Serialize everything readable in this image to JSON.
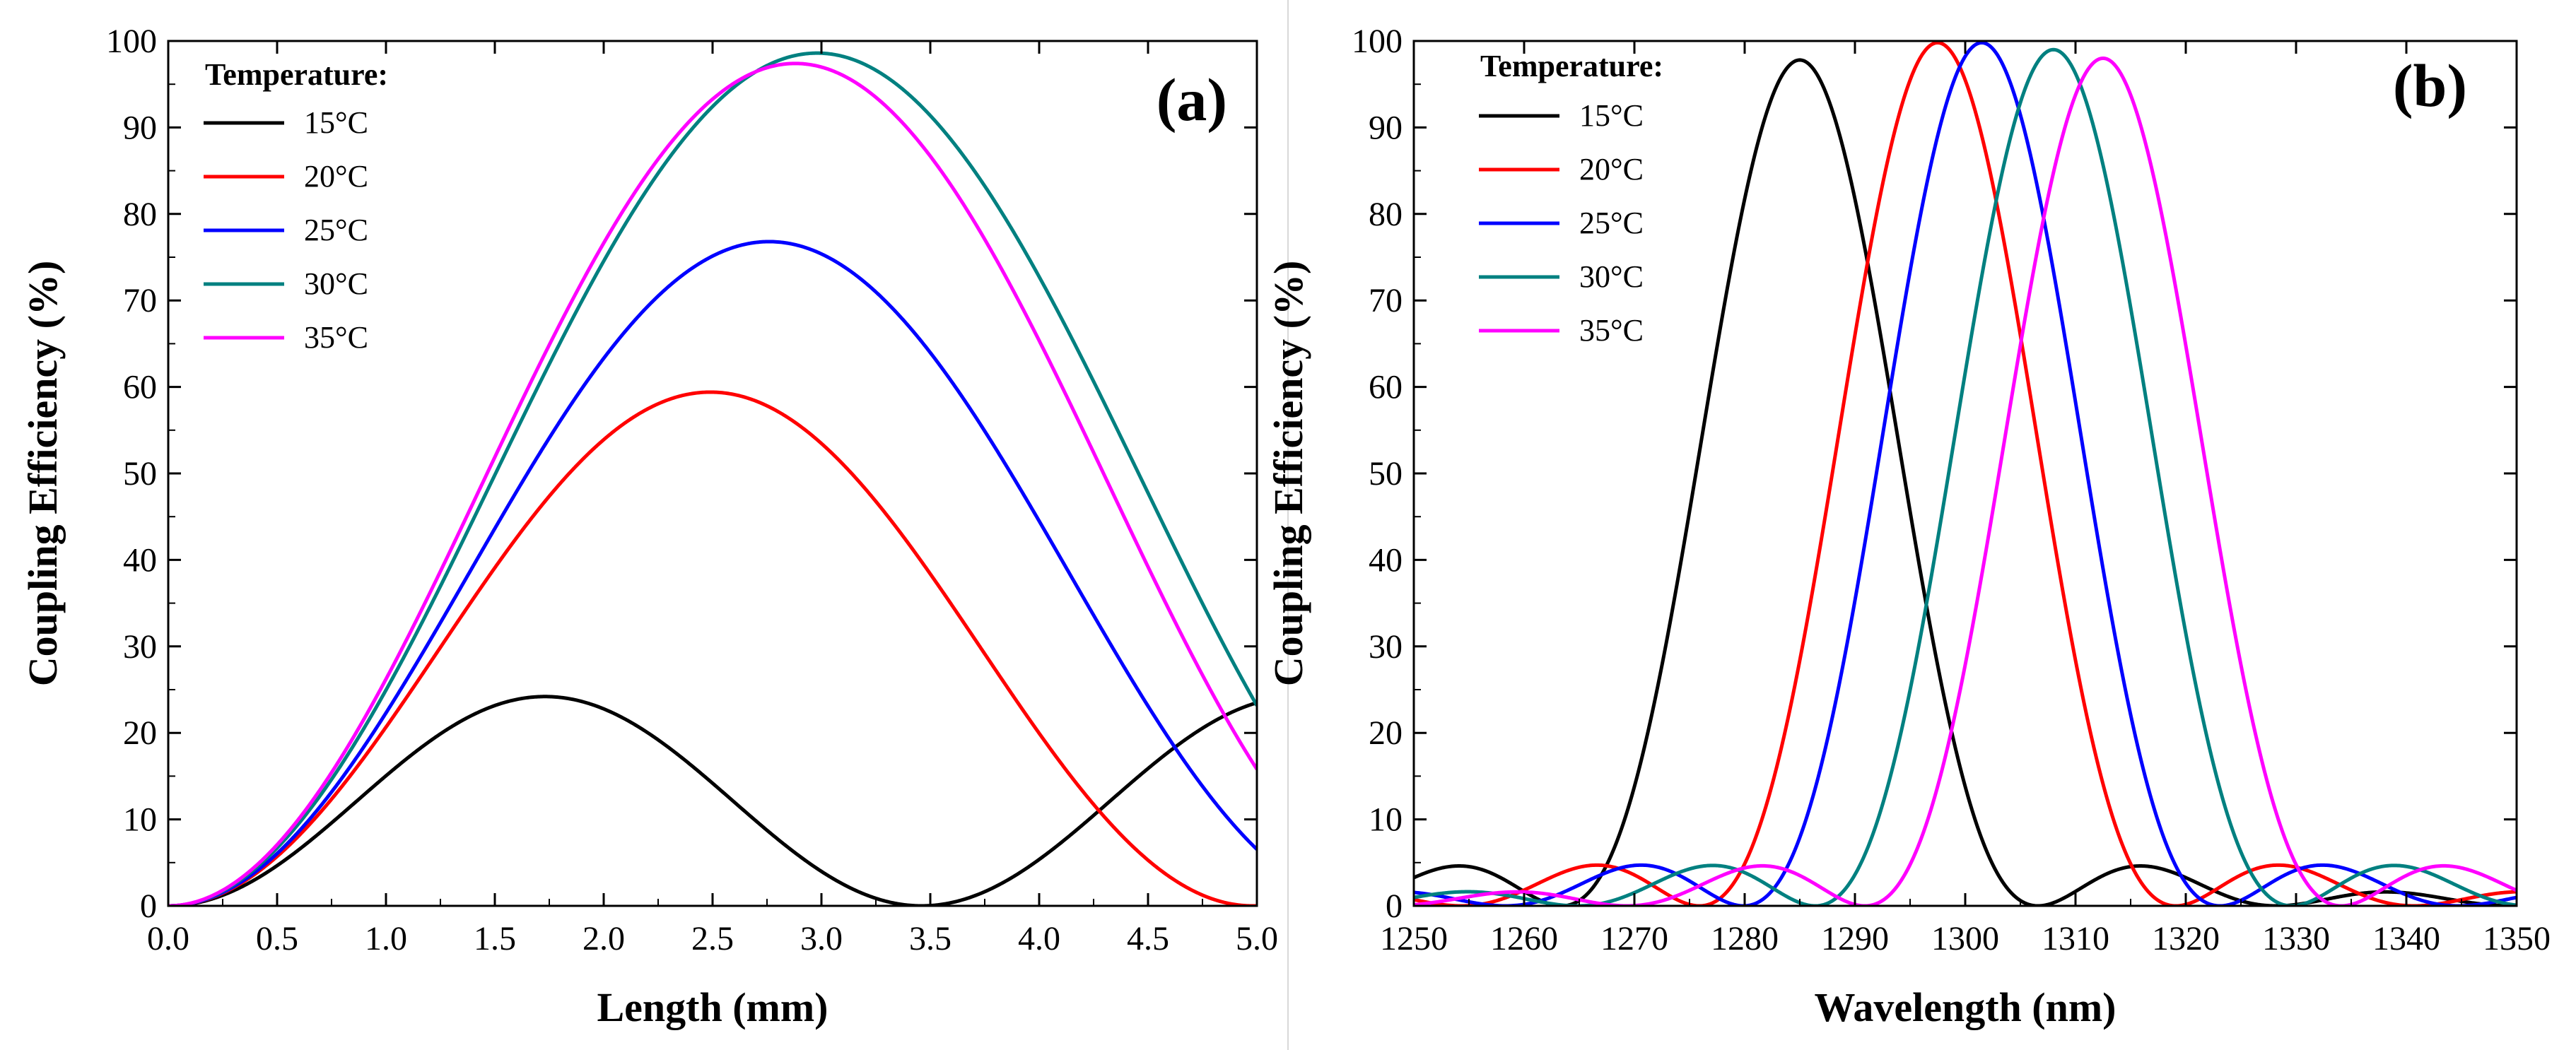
{
  "chart_data": [
    {
      "type": "line",
      "panel_label": "(a)",
      "title": "",
      "xlabel": "Length (mm)",
      "ylabel": "Coupling Efficiency (%)",
      "xlim": [
        0,
        5
      ],
      "ylim": [
        0,
        100
      ],
      "x_ticks": [
        "0.0",
        "0.5",
        "1.0",
        "1.5",
        "2.0",
        "2.5",
        "3.0",
        "3.5",
        "4.0",
        "4.5",
        "5.0"
      ],
      "x_tick_values": [
        0,
        0.5,
        1,
        1.5,
        2,
        2.5,
        3,
        3.5,
        4,
        4.5,
        5
      ],
      "y_ticks": [
        "0",
        "10",
        "20",
        "30",
        "40",
        "50",
        "60",
        "70",
        "80",
        "90",
        "100"
      ],
      "y_tick_values": [
        0,
        10,
        20,
        30,
        40,
        50,
        60,
        70,
        80,
        90,
        100
      ],
      "grid": false,
      "legend_position": "top-left",
      "legend_title": "Temperature:",
      "series": [
        {
          "name": "15°C",
          "color": "#000000",
          "model": {
            "peak": 24.2,
            "half_period": 1.73
          }
        },
        {
          "name": "20°C",
          "color": "#ff0000",
          "model": {
            "peak": 59.4,
            "half_period": 2.49
          }
        },
        {
          "name": "25°C",
          "color": "#0000ff",
          "model": {
            "peak": 76.8,
            "half_period": 2.76
          }
        },
        {
          "name": "30°C",
          "color": "#008080",
          "model": {
            "peak": 98.6,
            "half_period": 2.98
          }
        },
        {
          "name": "35°C",
          "color": "#ff00ff",
          "model": {
            "peak": 97.4,
            "half_period": 2.88
          }
        }
      ]
    },
    {
      "type": "line",
      "panel_label": "(b)",
      "title": "",
      "xlabel": "Wavelength (nm)",
      "ylabel": "Coupling Efficiency (%)",
      "xlim": [
        1250,
        1350
      ],
      "ylim": [
        0,
        100
      ],
      "x_ticks": [
        "1250",
        "1260",
        "1270",
        "1280",
        "1290",
        "1300",
        "1310",
        "1320",
        "1330",
        "1340",
        "1350"
      ],
      "x_tick_values": [
        1250,
        1260,
        1270,
        1280,
        1290,
        1300,
        1310,
        1320,
        1330,
        1340,
        1350
      ],
      "y_ticks": [
        "0",
        "10",
        "20",
        "30",
        "40",
        "50",
        "60",
        "70",
        "80",
        "90",
        "100"
      ],
      "y_tick_values": [
        0,
        10,
        20,
        30,
        40,
        50,
        60,
        70,
        80,
        90,
        100
      ],
      "grid": false,
      "legend_position": "top-left",
      "legend_title": "Temperature:",
      "series": [
        {
          "name": "15°C",
          "color": "#000000",
          "model": {
            "center": 1285,
            "peak": 97.8,
            "width_scale": 21.6
          }
        },
        {
          "name": "20°C",
          "color": "#ff0000",
          "model": {
            "center": 1297.5,
            "peak": 99.8,
            "width_scale": 21.6
          }
        },
        {
          "name": "25°C",
          "color": "#0000ff",
          "model": {
            "center": 1301.5,
            "peak": 99.8,
            "width_scale": 21.6
          }
        },
        {
          "name": "30°C",
          "color": "#008080",
          "model": {
            "center": 1308,
            "peak": 99.0,
            "width_scale": 21.6
          }
        },
        {
          "name": "35°C",
          "color": "#ff00ff",
          "model": {
            "center": 1312.5,
            "peak": 98.0,
            "width_scale": 21.6
          }
        }
      ]
    }
  ]
}
